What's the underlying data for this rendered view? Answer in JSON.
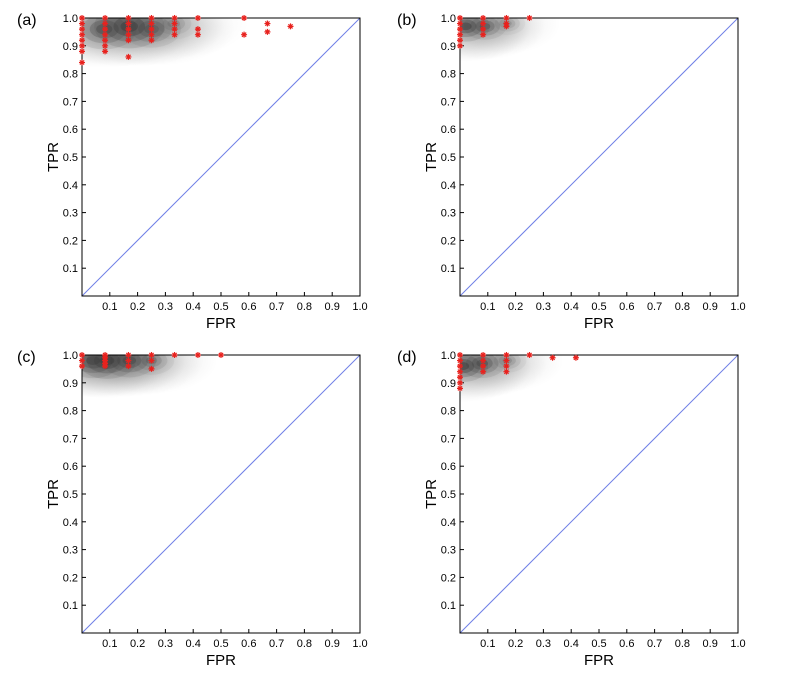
{
  "figure": {
    "x_axis_label": "FPR",
    "y_axis_label": "TPR",
    "colors": {
      "diagonal": "#6f7fe6",
      "marker": "#e8221e",
      "axis": "#000000",
      "density": "#3a3a3a"
    }
  },
  "chart_data": [
    {
      "panel_label": "(a)",
      "type": "scatter",
      "title": "",
      "xlabel": "FPR",
      "ylabel": "TPR",
      "xlim": [
        0,
        1
      ],
      "ylim": [
        0,
        1
      ],
      "x_tick_labels": [
        "0.1",
        "0.2",
        "0.3",
        "0.4",
        "0.5",
        "0.6",
        "0.7",
        "0.8",
        "0.9",
        "1.0"
      ],
      "y_tick_labels": [
        "0.1",
        "0.2",
        "0.3",
        "0.4",
        "0.5",
        "0.6",
        "0.7",
        "0.8",
        "0.9",
        "1.0"
      ],
      "reference_line": {
        "x": [
          0,
          1
        ],
        "y": [
          0,
          1
        ]
      },
      "density_centers": [
        {
          "x": 0.17,
          "y": 0.97,
          "weight": 1.0
        },
        {
          "x": 0.08,
          "y": 0.96,
          "weight": 0.8
        },
        {
          "x": 0.25,
          "y": 0.96,
          "weight": 0.6
        },
        {
          "x": 0.33,
          "y": 0.98,
          "weight": 0.3
        }
      ],
      "density_extent": 0.36,
      "points": [
        [
          0,
          1.0
        ],
        [
          0,
          0.98
        ],
        [
          0,
          0.96
        ],
        [
          0,
          0.94
        ],
        [
          0,
          0.92
        ],
        [
          0,
          0.9
        ],
        [
          0,
          0.88
        ],
        [
          0,
          0.84
        ],
        [
          0.083,
          1.0
        ],
        [
          0.083,
          0.98
        ],
        [
          0.083,
          0.96
        ],
        [
          0.083,
          0.94
        ],
        [
          0.083,
          0.92
        ],
        [
          0.083,
          0.9
        ],
        [
          0.083,
          0.88
        ],
        [
          0.167,
          1.0
        ],
        [
          0.167,
          0.98
        ],
        [
          0.167,
          0.96
        ],
        [
          0.167,
          0.94
        ],
        [
          0.167,
          0.92
        ],
        [
          0.167,
          0.86
        ],
        [
          0.25,
          1.0
        ],
        [
          0.25,
          0.98
        ],
        [
          0.25,
          0.96
        ],
        [
          0.25,
          0.94
        ],
        [
          0.25,
          0.92
        ],
        [
          0.333,
          1.0
        ],
        [
          0.333,
          0.98
        ],
        [
          0.333,
          0.96
        ],
        [
          0.333,
          0.94
        ],
        [
          0.417,
          1.0
        ],
        [
          0.417,
          0.96
        ],
        [
          0.417,
          0.94
        ],
        [
          0.583,
          1.0
        ],
        [
          0.583,
          0.94
        ],
        [
          0.667,
          0.98
        ],
        [
          0.667,
          0.95
        ],
        [
          0.75,
          0.97
        ]
      ]
    },
    {
      "panel_label": "(b)",
      "type": "scatter",
      "title": "",
      "xlabel": "FPR",
      "ylabel": "TPR",
      "xlim": [
        0,
        1
      ],
      "ylim": [
        0,
        1
      ],
      "x_tick_labels": [
        "0.1",
        "0.2",
        "0.3",
        "0.4",
        "0.5",
        "0.6",
        "0.7",
        "0.8",
        "0.9",
        "1.0"
      ],
      "y_tick_labels": [
        "0.1",
        "0.2",
        "0.3",
        "0.4",
        "0.5",
        "0.6",
        "0.7",
        "0.8",
        "0.9",
        "1.0"
      ],
      "reference_line": {
        "x": [
          0,
          1
        ],
        "y": [
          0,
          1
        ]
      },
      "density_centers": [
        {
          "x": 0.02,
          "y": 0.97,
          "weight": 1.0
        },
        {
          "x": 0.09,
          "y": 0.97,
          "weight": 0.7
        },
        {
          "x": 0.17,
          "y": 0.98,
          "weight": 0.35
        }
      ],
      "density_extent": 0.25,
      "points": [
        [
          0,
          1.0
        ],
        [
          0,
          0.98
        ],
        [
          0,
          0.96
        ],
        [
          0,
          0.94
        ],
        [
          0,
          0.92
        ],
        [
          0,
          0.9
        ],
        [
          0.083,
          1.0
        ],
        [
          0.083,
          0.98
        ],
        [
          0.083,
          0.96
        ],
        [
          0.083,
          0.94
        ],
        [
          0.167,
          1.0
        ],
        [
          0.167,
          0.98
        ],
        [
          0.167,
          0.97
        ],
        [
          0.25,
          1.0
        ]
      ]
    },
    {
      "panel_label": "(c)",
      "type": "scatter",
      "title": "",
      "xlabel": "FPR",
      "ylabel": "TPR",
      "xlim": [
        0,
        1
      ],
      "ylim": [
        0,
        1
      ],
      "x_tick_labels": [
        "0.1",
        "0.2",
        "0.3",
        "0.4",
        "0.5",
        "0.6",
        "0.7",
        "0.8",
        "0.9",
        "1.0"
      ],
      "y_tick_labels": [
        "0.1",
        "0.2",
        "0.3",
        "0.4",
        "0.5",
        "0.6",
        "0.7",
        "0.8",
        "0.9",
        "1.0"
      ],
      "reference_line": {
        "x": [
          0,
          1
        ],
        "y": [
          0,
          1
        ]
      },
      "density_centers": [
        {
          "x": 0.04,
          "y": 0.98,
          "weight": 0.9
        },
        {
          "x": 0.09,
          "y": 0.98,
          "weight": 1.0
        },
        {
          "x": 0.17,
          "y": 0.98,
          "weight": 0.8
        },
        {
          "x": 0.25,
          "y": 0.98,
          "weight": 0.45
        }
      ],
      "density_extent": 0.3,
      "points": [
        [
          0,
          1.0
        ],
        [
          0,
          0.98
        ],
        [
          0,
          0.96
        ],
        [
          0.083,
          1.0
        ],
        [
          0.083,
          0.99
        ],
        [
          0.083,
          0.98
        ],
        [
          0.083,
          0.97
        ],
        [
          0.083,
          0.96
        ],
        [
          0.167,
          1.0
        ],
        [
          0.167,
          0.98
        ],
        [
          0.167,
          0.96
        ],
        [
          0.25,
          1.0
        ],
        [
          0.25,
          0.98
        ],
        [
          0.25,
          0.95
        ],
        [
          0.333,
          1.0
        ],
        [
          0.417,
          1.0
        ],
        [
          0.5,
          1.0
        ]
      ]
    },
    {
      "panel_label": "(d)",
      "type": "scatter",
      "title": "",
      "xlabel": "FPR",
      "ylabel": "TPR",
      "xlim": [
        0,
        1
      ],
      "ylim": [
        0,
        1
      ],
      "x_tick_labels": [
        "0.1",
        "0.2",
        "0.3",
        "0.4",
        "0.5",
        "0.6",
        "0.7",
        "0.8",
        "0.9",
        "1.0"
      ],
      "y_tick_labels": [
        "0.1",
        "0.2",
        "0.3",
        "0.4",
        "0.5",
        "0.6",
        "0.7",
        "0.8",
        "0.9",
        "1.0"
      ],
      "reference_line": {
        "x": [
          0,
          1
        ],
        "y": [
          0,
          1
        ]
      },
      "density_centers": [
        {
          "x": 0.01,
          "y": 0.96,
          "weight": 1.0
        },
        {
          "x": 0.08,
          "y": 0.97,
          "weight": 0.8
        },
        {
          "x": 0.17,
          "y": 0.98,
          "weight": 0.4
        }
      ],
      "density_extent": 0.26,
      "points": [
        [
          0,
          1.0
        ],
        [
          0,
          0.98
        ],
        [
          0,
          0.96
        ],
        [
          0,
          0.94
        ],
        [
          0,
          0.92
        ],
        [
          0,
          0.9
        ],
        [
          0,
          0.88
        ],
        [
          0.083,
          1.0
        ],
        [
          0.083,
          0.98
        ],
        [
          0.083,
          0.96
        ],
        [
          0.083,
          0.94
        ],
        [
          0.167,
          1.0
        ],
        [
          0.167,
          0.98
        ],
        [
          0.167,
          0.96
        ],
        [
          0.167,
          0.94
        ],
        [
          0.25,
          1.0
        ],
        [
          0.333,
          0.99
        ],
        [
          0.417,
          0.99
        ]
      ]
    }
  ]
}
